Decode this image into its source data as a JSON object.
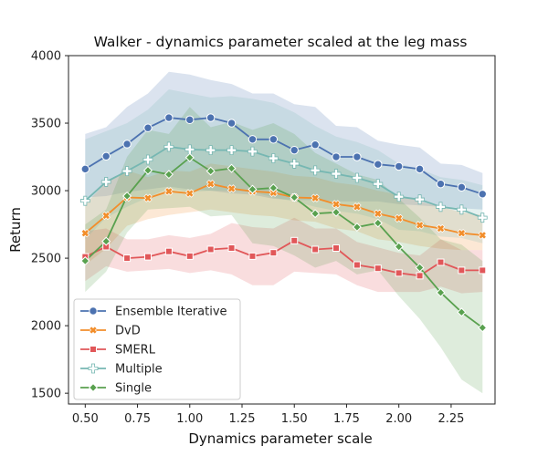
{
  "chart_data": {
    "type": "line",
    "title": "Walker - dynamics parameter scaled at the leg mass",
    "xlabel": "Dynamics parameter scale",
    "ylabel": "Return",
    "xlim": [
      0.42,
      2.46
    ],
    "ylim": [
      1420,
      4000
    ],
    "xticks": [
      "0.50",
      "0.75",
      "1.00",
      "1.25",
      "1.50",
      "1.75",
      "2.00",
      "2.25"
    ],
    "xtick_values": [
      0.5,
      0.75,
      1.0,
      1.25,
      1.5,
      1.75,
      2.0,
      2.25
    ],
    "yticks": [
      "1500",
      "2000",
      "2500",
      "3000",
      "3500",
      "4000"
    ],
    "ytick_values": [
      1500,
      2000,
      2500,
      3000,
      3500,
      4000
    ],
    "grid": false,
    "legend_position": "lower-left",
    "x": [
      0.5,
      0.6,
      0.7,
      0.8,
      0.9,
      1.0,
      1.1,
      1.2,
      1.3,
      1.4,
      1.5,
      1.6,
      1.7,
      1.8,
      1.9,
      2.0,
      2.1,
      2.2,
      2.3,
      2.4
    ],
    "series": [
      {
        "name": "Ensemble Iterative",
        "color": "#4c72b0",
        "marker": "circle",
        "values": [
          3160,
          3255,
          3345,
          3465,
          3540,
          3525,
          3540,
          3500,
          3380,
          3380,
          3300,
          3340,
          3250,
          3250,
          3195,
          3180,
          3160,
          3050,
          3025,
          2975
        ],
        "lower": [
          2950,
          2960,
          2990,
          3010,
          3030,
          3010,
          3000,
          2980,
          2970,
          2940,
          2930,
          2930,
          2920,
          2920,
          2920,
          2900,
          2890,
          2880,
          2870,
          2860
        ],
        "upper": [
          3420,
          3470,
          3620,
          3720,
          3880,
          3860,
          3820,
          3790,
          3720,
          3720,
          3640,
          3620,
          3480,
          3470,
          3370,
          3340,
          3320,
          3200,
          3190,
          3130
        ]
      },
      {
        "name": "DvD",
        "color": "#f28e2b",
        "marker": "x",
        "values": [
          2685,
          2815,
          2950,
          2945,
          2995,
          2980,
          3050,
          3015,
          2995,
          2985,
          2950,
          2945,
          2900,
          2880,
          2830,
          2795,
          2745,
          2720,
          2685,
          2670
        ],
        "lower": [
          2450,
          2570,
          2740,
          2790,
          2820,
          2840,
          2860,
          2840,
          2820,
          2810,
          2780,
          2770,
          2720,
          2700,
          2640,
          2620,
          2590,
          2570,
          2560,
          2560
        ],
        "upper": [
          2900,
          3060,
          3150,
          3100,
          3150,
          3140,
          3200,
          3180,
          3160,
          3140,
          3110,
          3100,
          3060,
          3040,
          3000,
          2970,
          2920,
          2880,
          2840,
          2820
        ]
      },
      {
        "name": "SMERL",
        "color": "#e15759",
        "marker": "square",
        "values": [
          2510,
          2585,
          2500,
          2510,
          2550,
          2515,
          2565,
          2575,
          2515,
          2540,
          2630,
          2565,
          2575,
          2450,
          2425,
          2390,
          2370,
          2470,
          2410,
          2410
        ],
        "lower": [
          2330,
          2440,
          2400,
          2410,
          2420,
          2390,
          2410,
          2380,
          2300,
          2300,
          2400,
          2390,
          2380,
          2300,
          2250,
          2250,
          2250,
          2290,
          2240,
          2250
        ],
        "upper": [
          2700,
          2720,
          2640,
          2640,
          2670,
          2650,
          2680,
          2760,
          2730,
          2720,
          2800,
          2720,
          2720,
          2620,
          2580,
          2540,
          2520,
          2640,
          2560,
          2560
        ]
      },
      {
        "name": "Multiple",
        "color": "#76b7b2",
        "marker": "plus",
        "values": [
          2925,
          3065,
          3145,
          3230,
          3325,
          3305,
          3300,
          3300,
          3290,
          3240,
          3200,
          3150,
          3125,
          3095,
          3050,
          2955,
          2935,
          2880,
          2860,
          2800
        ],
        "lower": [
          2640,
          2800,
          2880,
          2950,
          3020,
          2990,
          3000,
          3000,
          2990,
          2950,
          2920,
          2880,
          2850,
          2830,
          2790,
          2710,
          2700,
          2660,
          2650,
          2610
        ],
        "upper": [
          3380,
          3440,
          3500,
          3600,
          3750,
          3720,
          3690,
          3700,
          3680,
          3650,
          3580,
          3480,
          3400,
          3360,
          3300,
          3200,
          3160,
          3100,
          3080,
          3040
        ]
      },
      {
        "name": "Single",
        "color": "#59a14f",
        "marker": "diamond",
        "values": [
          2480,
          2625,
          2960,
          3150,
          3120,
          3245,
          3145,
          3165,
          3010,
          3020,
          2950,
          2830,
          2840,
          2730,
          2760,
          2585,
          2430,
          2245,
          2100,
          1985
        ],
        "lower": [
          2250,
          2400,
          2690,
          2860,
          2870,
          2880,
          2810,
          2820,
          2610,
          2590,
          2520,
          2430,
          2480,
          2380,
          2410,
          2220,
          2050,
          1840,
          1600,
          1500
        ],
        "upper": [
          2750,
          2860,
          3250,
          3450,
          3420,
          3620,
          3470,
          3510,
          3450,
          3500,
          3420,
          3280,
          3200,
          3120,
          3080,
          2940,
          2800,
          2640,
          2600,
          2480
        ]
      }
    ]
  }
}
